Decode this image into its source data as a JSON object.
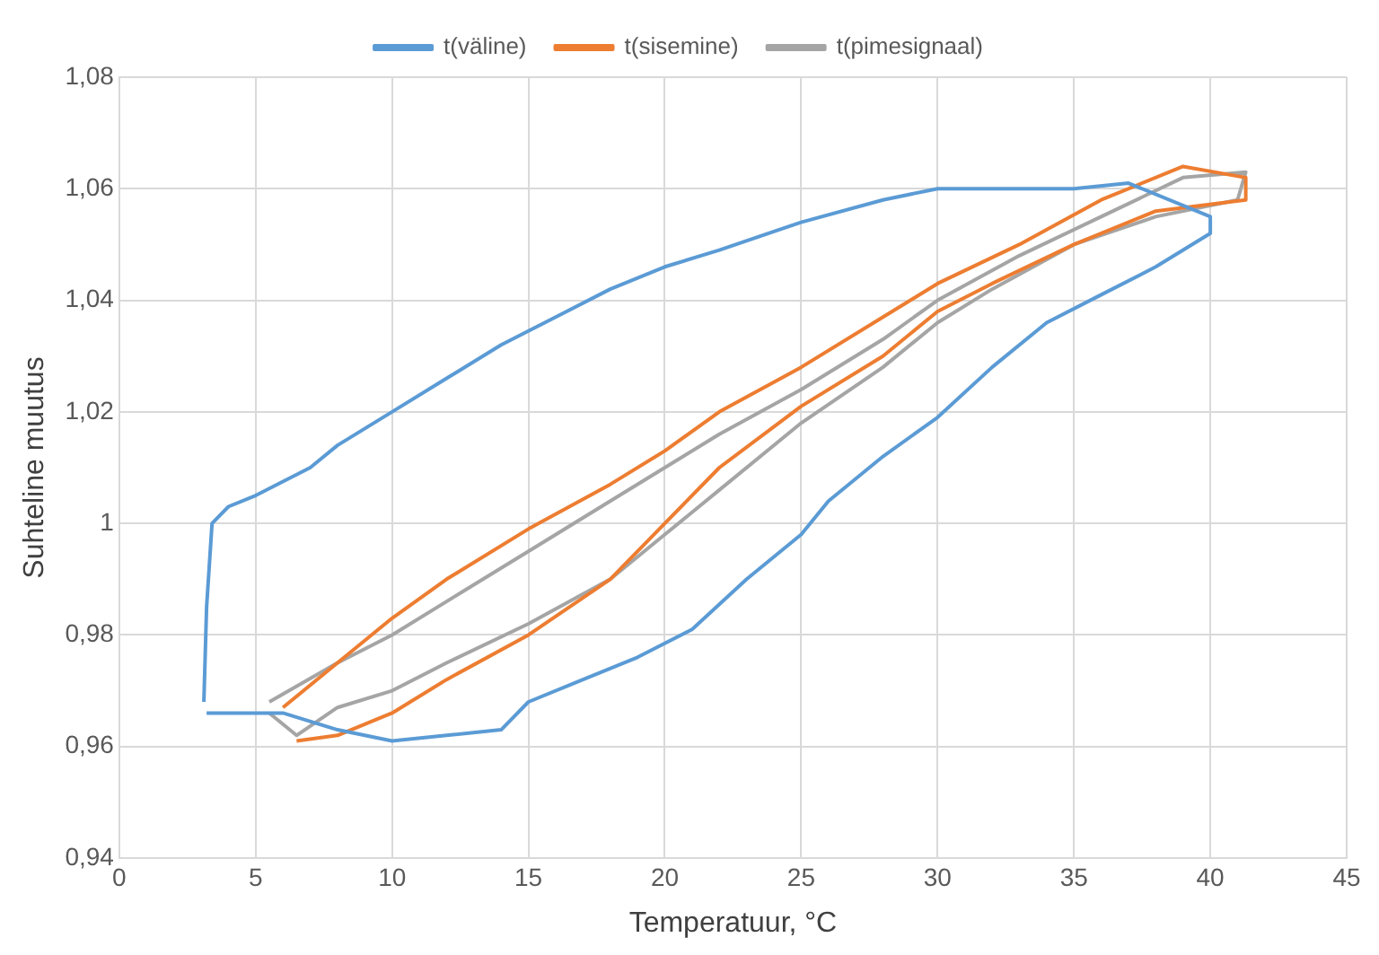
{
  "chart_data": {
    "type": "line",
    "xlabel": "Temperatuur, °C",
    "ylabel": "Suhteline muutus",
    "legend": "top",
    "grid": true,
    "marker": "none",
    "line_style": "solid",
    "xlim": [
      0,
      45
    ],
    "xticks": [
      0,
      5,
      10,
      15,
      20,
      25,
      30,
      35,
      40,
      45
    ],
    "ylim": [
      0.94,
      1.08
    ],
    "yticks": [
      {
        "value": 0.94,
        "label": "0,94"
      },
      {
        "value": 0.96,
        "label": "0,96"
      },
      {
        "value": 0.98,
        "label": "0,98"
      },
      1,
      {
        "value": 1.02,
        "label": "1,02"
      },
      {
        "value": 1.04,
        "label": "1,04"
      },
      {
        "value": 1.06,
        "label": "1,06"
      },
      {
        "value": 1.08,
        "label": "1,08"
      }
    ],
    "series": [
      {
        "name": "t(väline)",
        "color": "#5b9bd5",
        "x": [
          3.1,
          3.2,
          3.4,
          4,
          5,
          7,
          8,
          10,
          12,
          14,
          16,
          18,
          20,
          22,
          25,
          28,
          30,
          32,
          35,
          37,
          40,
          40,
          38,
          36,
          34,
          32,
          30,
          28,
          26,
          25,
          23,
          21,
          19,
          17,
          15,
          14,
          12,
          10,
          8,
          6,
          4,
          3.2
        ],
        "values": [
          0.968,
          0.985,
          1.0,
          1.003,
          1.005,
          1.01,
          1.014,
          1.02,
          1.026,
          1.032,
          1.037,
          1.042,
          1.046,
          1.049,
          1.054,
          1.058,
          1.06,
          1.06,
          1.06,
          1.061,
          1.055,
          1.052,
          1.046,
          1.041,
          1.036,
          1.028,
          1.019,
          1.012,
          1.004,
          0.998,
          0.99,
          0.981,
          0.976,
          0.972,
          0.968,
          0.963,
          0.962,
          0.961,
          0.963,
          0.966,
          0.966,
          0.966
        ]
      },
      {
        "name": "t(sisemine)",
        "color": "#ed7d31",
        "x": [
          6,
          8,
          10,
          12,
          15,
          18,
          20,
          22,
          25,
          28,
          30,
          33,
          36,
          39,
          41.3,
          41.3,
          38,
          35,
          32,
          30,
          28,
          25,
          22,
          20,
          18,
          15,
          12,
          10,
          8,
          6.5
        ],
        "values": [
          0.967,
          0.975,
          0.983,
          0.99,
          0.999,
          1.007,
          1.013,
          1.02,
          1.028,
          1.037,
          1.043,
          1.05,
          1.058,
          1.064,
          1.062,
          1.058,
          1.056,
          1.05,
          1.043,
          1.038,
          1.03,
          1.021,
          1.01,
          1.0,
          0.99,
          0.98,
          0.972,
          0.966,
          0.962,
          0.961
        ]
      },
      {
        "name": "t(pimesignaal)",
        "color": "#a5a5a5",
        "x": [
          5.5,
          8,
          10,
          12,
          15,
          18,
          20,
          22,
          25,
          28,
          30,
          33,
          36,
          39,
          41.3,
          41,
          38,
          35,
          32,
          30,
          28,
          25,
          22,
          20,
          18,
          15,
          12,
          10,
          8,
          6.5,
          5.5
        ],
        "values": [
          0.968,
          0.975,
          0.98,
          0.986,
          0.995,
          1.004,
          1.01,
          1.016,
          1.024,
          1.033,
          1.04,
          1.048,
          1.055,
          1.062,
          1.063,
          1.058,
          1.055,
          1.05,
          1.042,
          1.036,
          1.028,
          1.018,
          1.006,
          0.998,
          0.99,
          0.982,
          0.975,
          0.97,
          0.967,
          0.962,
          0.966
        ]
      }
    ]
  }
}
